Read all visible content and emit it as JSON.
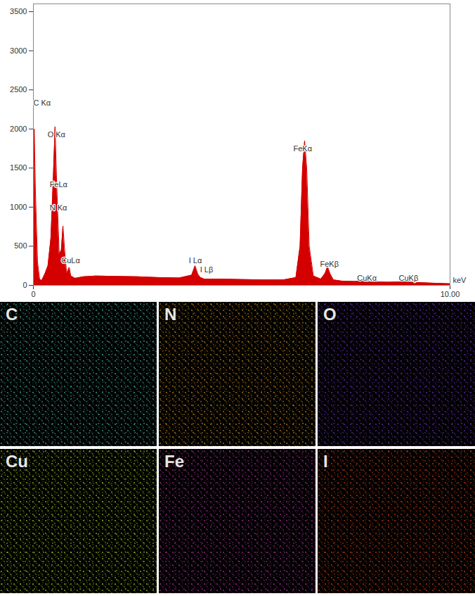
{
  "chart_data": {
    "type": "area",
    "color": "#d40000",
    "x": [
      0,
      0.02,
      0.05,
      0.1,
      0.15,
      0.2,
      0.28,
      0.35,
      0.42,
      0.48,
      0.52,
      0.56,
      0.62,
      0.67,
      0.71,
      0.75,
      0.8,
      0.86,
      0.9,
      1.0,
      1.2,
      1.5,
      2.0,
      2.5,
      3.0,
      3.5,
      3.8,
      3.88,
      3.95,
      4.01,
      4.1,
      4.5,
      5.0,
      5.5,
      6.0,
      6.3,
      6.4,
      6.46,
      6.51,
      6.56,
      6.62,
      6.72,
      6.9,
      7.0,
      7.06,
      7.12,
      7.2,
      7.4,
      7.7,
      7.95,
      8.01,
      8.08,
      8.5,
      8.95,
      9.0,
      9.05,
      9.5,
      10
    ],
    "values": [
      0,
      2000,
      1200,
      300,
      80,
      60,
      150,
      250,
      600,
      1400,
      2030,
      1300,
      400,
      450,
      760,
      450,
      150,
      230,
      120,
      90,
      110,
      120,
      115,
      110,
      100,
      95,
      130,
      250,
      140,
      100,
      80,
      80,
      75,
      70,
      70,
      100,
      500,
      1500,
      1850,
      1500,
      500,
      120,
      80,
      150,
      240,
      150,
      70,
      55,
      50,
      55,
      70,
      45,
      40,
      45,
      55,
      40,
      30,
      20
    ],
    "xlim": [
      0,
      10
    ],
    "xticks": [
      0,
      {
        "value": 10,
        "label": "10.00"
      }
    ],
    "ylim": [
      0,
      3600
    ],
    "yticks": [
      0,
      500,
      1000,
      1500,
      2000,
      2500,
      3000,
      3500
    ],
    "x_label": "keV",
    "grid": false,
    "annotations": [
      {
        "text": "C Kα",
        "x": 0.0,
        "y": 2330
      },
      {
        "text": "O Kα",
        "x": 0.34,
        "y": 1930
      },
      {
        "text": "FeLα",
        "x": 0.39,
        "y": 1285
      },
      {
        "text": "N Kα",
        "x": 0.39,
        "y": 990
      },
      {
        "text": "CuLα",
        "x": 0.67,
        "y": 315
      },
      {
        "text": "I Lα",
        "x": 3.73,
        "y": 315
      },
      {
        "text": "I Lβ",
        "x": 4.0,
        "y": 200
      },
      {
        "text": "FeKα",
        "x": 6.24,
        "y": 1750
      },
      {
        "text": "FeKβ",
        "x": 6.88,
        "y": 270
      },
      {
        "text": "CuKα",
        "x": 7.77,
        "y": 90
      },
      {
        "text": "CuKβ",
        "x": 8.77,
        "y": 90
      }
    ]
  },
  "maps": [
    {
      "label": "C",
      "color": "#4fc9b0"
    },
    {
      "label": "N",
      "color": "#e0a020"
    },
    {
      "label": "O",
      "color": "#7b3ad8"
    },
    {
      "label": "Cu",
      "color": "#b5e61d"
    },
    {
      "label": "Fe",
      "color": "#c040b0"
    },
    {
      "label": "I",
      "color": "#e84a1a"
    }
  ]
}
